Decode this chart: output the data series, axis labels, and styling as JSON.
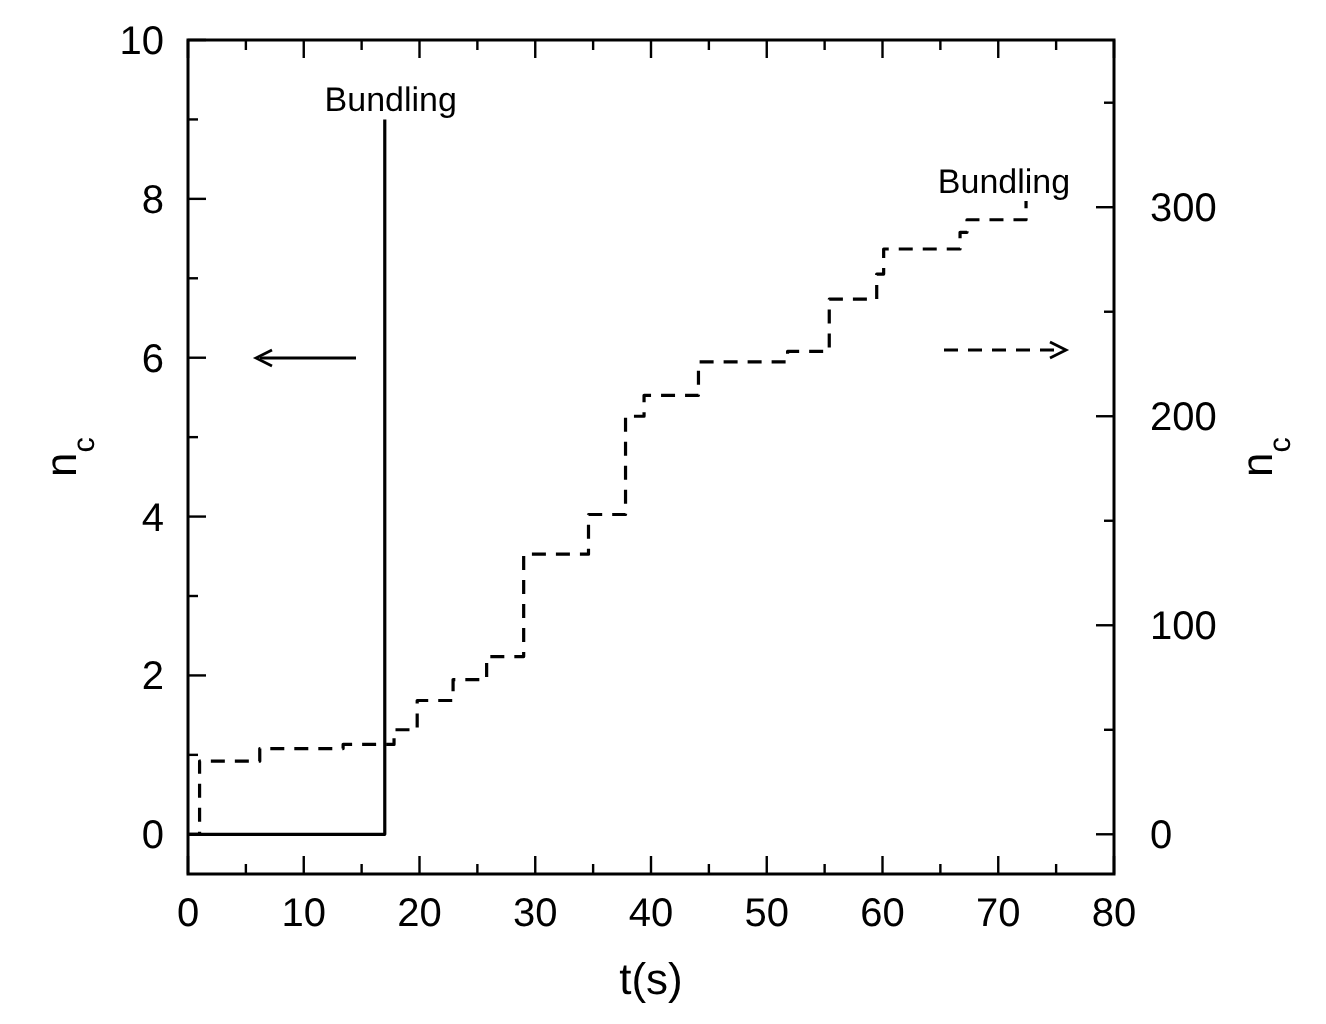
{
  "chart_data": {
    "type": "step",
    "xlabel": "t(s)",
    "ylabel": "n$_{c}$",
    "y2label": "n$_{c}$",
    "xlim": [
      0,
      80
    ],
    "xticks": [
      0,
      {
        "value": 5,
        "label": null
      },
      10,
      {
        "value": 15,
        "label": null
      },
      20,
      {
        "value": 25,
        "label": null
      },
      30,
      {
        "value": 35,
        "label": null
      },
      40,
      {
        "value": 45,
        "label": null
      },
      50,
      {
        "value": 55,
        "label": null
      },
      60,
      {
        "value": 65,
        "label": null
      },
      70,
      {
        "value": 75,
        "label": null
      },
      80
    ],
    "ylim": [
      -0.5,
      10
    ],
    "yticks": [
      0,
      {
        "value": 1,
        "label": null
      },
      2,
      {
        "value": 3,
        "label": null
      },
      4,
      {
        "value": 5,
        "label": null
      },
      6,
      {
        "value": 7,
        "label": null
      },
      8,
      {
        "value": 9,
        "label": null
      },
      10
    ],
    "y2lim": [
      -19,
      380
    ],
    "y2ticks": [
      0,
      {
        "value": 50,
        "label": null
      },
      100,
      {
        "value": 150,
        "label": null
      },
      200,
      {
        "value": 250,
        "label": null
      },
      300,
      {
        "value": 350,
        "label": null
      }
    ],
    "series": [
      {
        "color": "#000000",
        "line_style": "solid",
        "x": [
          0,
          17
        ],
        "values": [
          0,
          9
        ]
      },
      {
        "color": "#000000",
        "line_style": "dashed",
        "axis": "y2",
        "x": [
          0,
          1,
          6.2,
          13.4,
          17.8,
          19.8,
          22.9,
          25.8,
          29,
          34.6,
          37.8,
          39.4,
          44.1,
          51.8,
          55.4,
          59.5,
          60.1,
          66.7,
          67.3,
          72.4
        ],
        "values": [
          0,
          35,
          41,
          43,
          50,
          64,
          74,
          85,
          134,
          153,
          200,
          210,
          226,
          231,
          256,
          268,
          280,
          288,
          294,
          303
        ]
      }
    ],
    "annotations": [
      "Bundling",
      "Bundling"
    ]
  }
}
